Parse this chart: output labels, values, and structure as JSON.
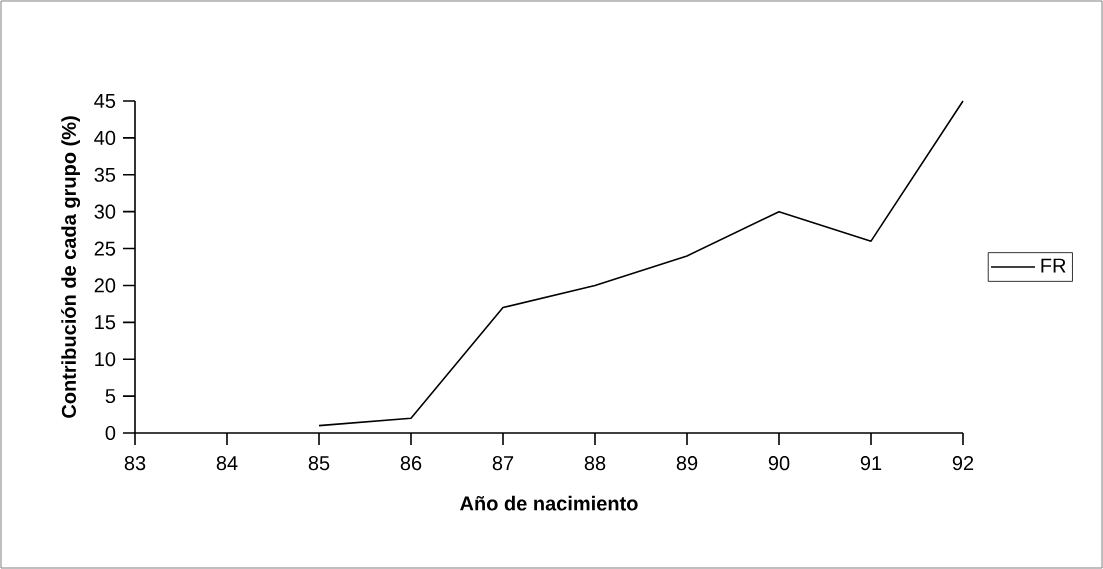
{
  "chart_data": {
    "type": "line",
    "xlabel": "Año de nacimiento",
    "ylabel": "Contribución de cada grupo (%)",
    "x": [
      85,
      86,
      87,
      88,
      89,
      90,
      91,
      92
    ],
    "xlim": [
      83,
      92
    ],
    "xticks": [
      83,
      84,
      85,
      86,
      87,
      88,
      89,
      90,
      91,
      92
    ],
    "ylim": [
      0,
      45
    ],
    "yticks": [
      0,
      5,
      10,
      15,
      20,
      25,
      30,
      35,
      40,
      45
    ],
    "series": [
      {
        "name": "FR",
        "color": "#000000",
        "values": [
          1,
          2,
          17,
          20,
          24,
          30,
          26,
          45
        ]
      }
    ],
    "legend": "right",
    "marker": "none",
    "line_style": "solid"
  }
}
